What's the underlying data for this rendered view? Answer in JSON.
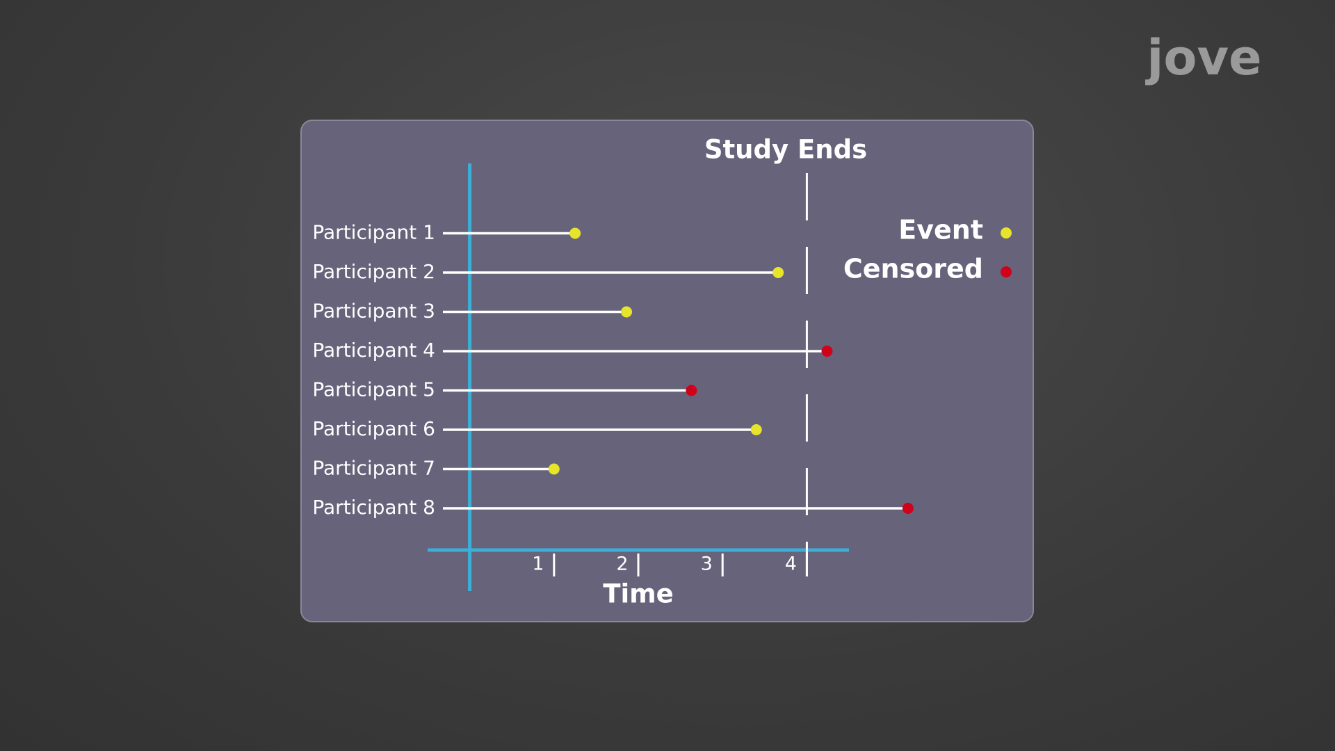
{
  "logo": "jove",
  "chart_data": {
    "type": "timeline",
    "categories": [
      "Participant 1",
      "Participant 2",
      "Participant 3",
      "Participant 4",
      "Participant 5",
      "Participant 6",
      "Participant 7",
      "Participant 8"
    ],
    "series": [
      {
        "name": "Event",
        "color": "#e6e42b",
        "values": [
          1.25,
          3.66,
          1.86,
          null,
          null,
          3.4,
          1.0,
          null
        ]
      },
      {
        "name": "Censored",
        "color": "#d0021b",
        "values": [
          null,
          null,
          null,
          4.24,
          2.63,
          null,
          null,
          5.2
        ]
      }
    ],
    "xlim": [
      -0.5,
      4.5
    ],
    "xticks": [
      1,
      2,
      3,
      4
    ],
    "xlabel": "Time",
    "annotation": {
      "text": "Study Ends",
      "x": 4
    }
  }
}
